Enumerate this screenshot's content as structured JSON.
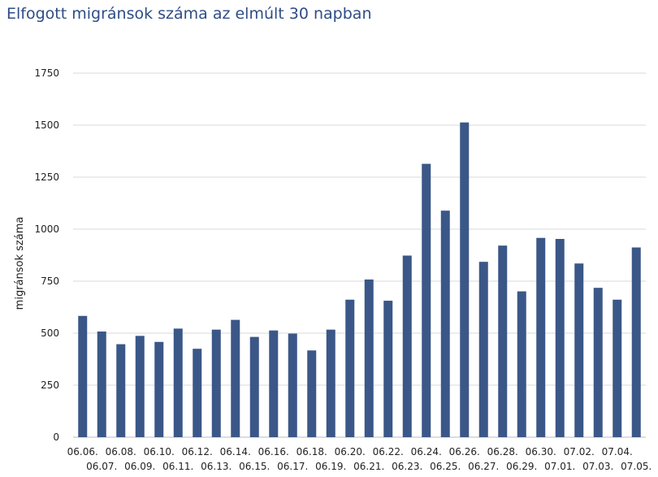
{
  "chart_data": {
    "type": "bar",
    "title": "Elfogott migránsok száma az elmúlt 30 napban",
    "xlabel": "",
    "ylabel": "migránsok száma",
    "ylim": [
      0,
      1750
    ],
    "yticks": [
      0,
      250,
      500,
      750,
      1000,
      1250,
      1500,
      1750
    ],
    "grid": true,
    "bar_color": "#3a5788",
    "categories": [
      "06.06.",
      "06.07.",
      "06.08.",
      "06.09.",
      "06.10.",
      "06.11.",
      "06.12.",
      "06.13.",
      "06.14.",
      "06.15.",
      "06.16.",
      "06.17.",
      "06.18.",
      "06.19.",
      "06.20.",
      "06.21.",
      "06.22.",
      "06.23.",
      "06.24.",
      "06.25.",
      "06.26.",
      "06.27.",
      "06.28.",
      "06.29.",
      "06.30.",
      "07.01.",
      "07.02.",
      "07.03.",
      "07.04.",
      "07.05."
    ],
    "values": [
      583,
      508,
      447,
      487,
      458,
      522,
      425,
      517,
      564,
      482,
      513,
      498,
      417,
      517,
      661,
      758,
      656,
      873,
      1314,
      1089,
      1513,
      843,
      921,
      701,
      958,
      953,
      835,
      718,
      661,
      912
    ]
  }
}
